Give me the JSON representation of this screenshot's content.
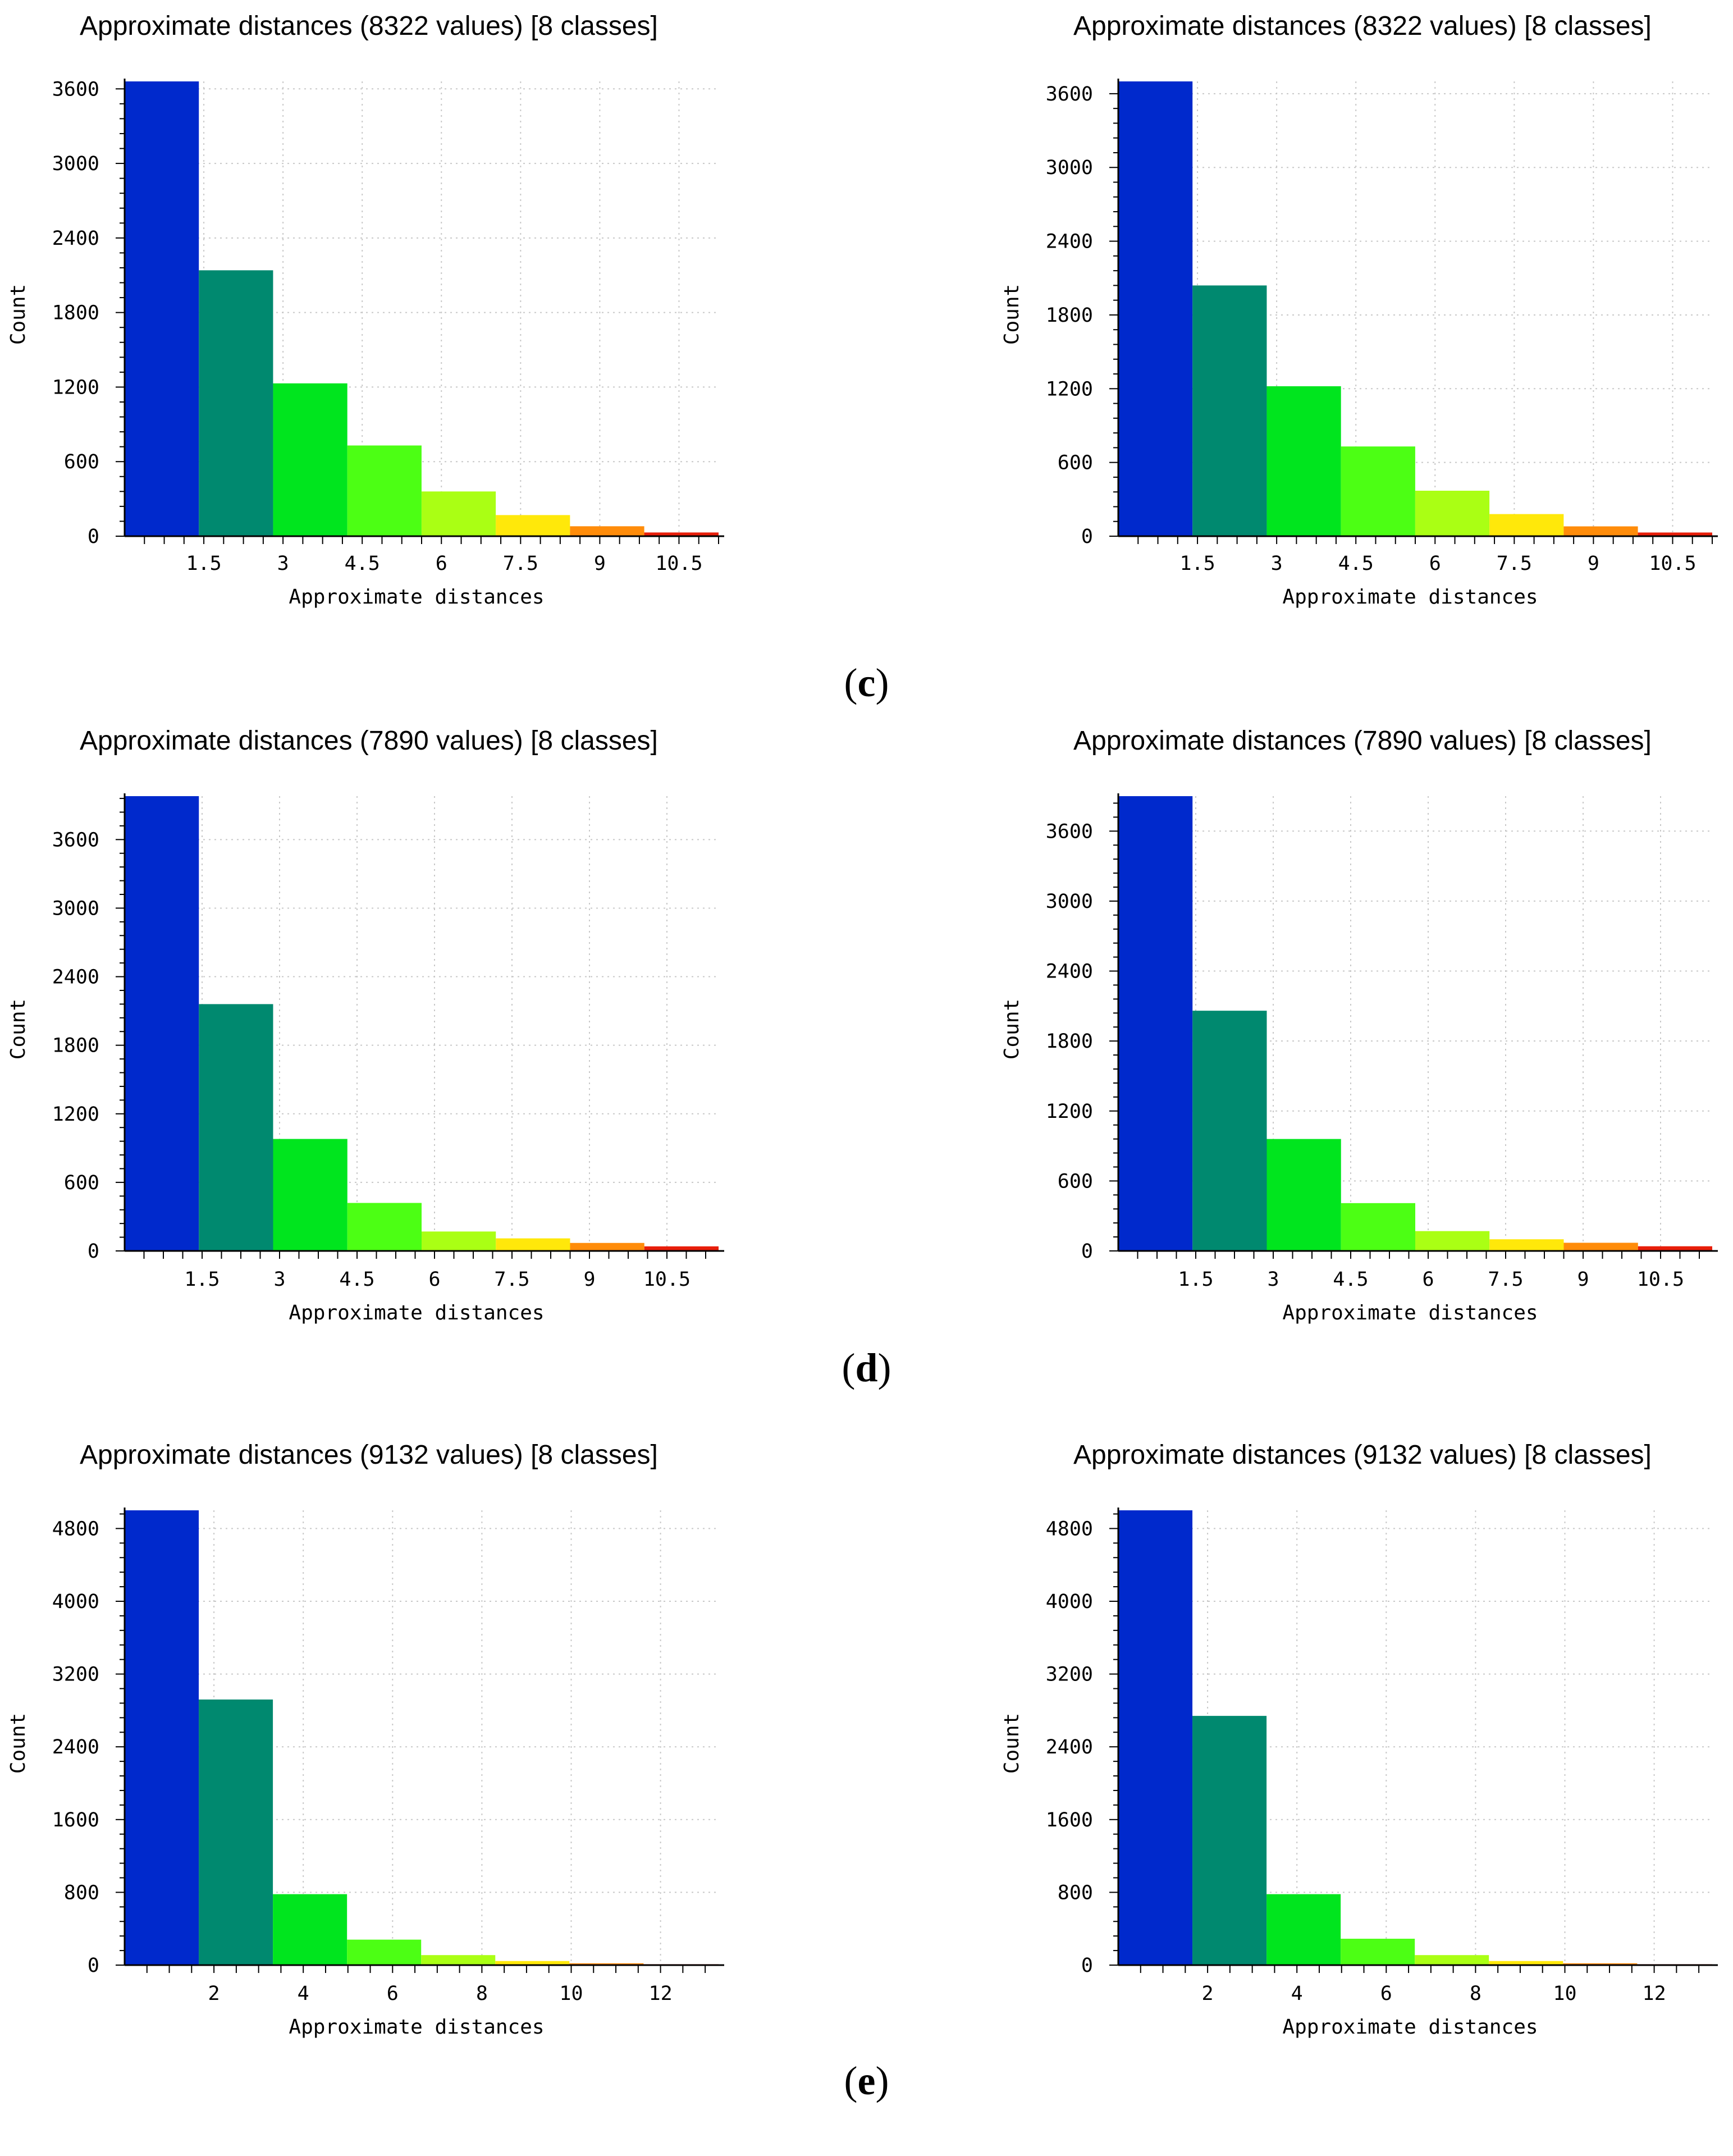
{
  "colors": [
    "#0029cc",
    "#00896f",
    "#00e51e",
    "#4cff14",
    "#aaff14",
    "#ffe80a",
    "#ff8c0a",
    "#e81e0a"
  ],
  "panels": [
    {
      "label": "c"
    },
    {
      "label": "d"
    },
    {
      "label": "e"
    }
  ],
  "chart_data": [
    {
      "type": "bar",
      "panel": "c",
      "side": "left",
      "title": "Approximate distances (8322 values) [8 classes]",
      "xlabel": "Approximate distances",
      "ylabel": "Count",
      "xlim": [
        0,
        11.25
      ],
      "ylim": [
        0,
        3660
      ],
      "yticks": [
        0,
        600,
        1200,
        1800,
        2400,
        3000,
        3600
      ],
      "xticks": [
        "1.5",
        "3",
        "4.5",
        "6",
        "7.5",
        "9",
        "10.5"
      ],
      "bin_edges": [
        0,
        1.406,
        2.812,
        4.218,
        5.624,
        7.03,
        8.436,
        9.842,
        11.25
      ],
      "values": [
        3660,
        2140,
        1230,
        730,
        360,
        170,
        80,
        30
      ]
    },
    {
      "type": "bar",
      "panel": "c",
      "side": "right",
      "title": "Approximate distances (8322 values) [8 classes]",
      "xlabel": "Approximate distances",
      "ylabel": "Count",
      "xlim": [
        0,
        11.25
      ],
      "ylim": [
        0,
        3700
      ],
      "yticks": [
        0,
        600,
        1200,
        1800,
        2400,
        3000,
        3600
      ],
      "xticks": [
        "1.5",
        "3",
        "4.5",
        "6",
        "7.5",
        "9",
        "10.5"
      ],
      "bin_edges": [
        0,
        1.406,
        2.812,
        4.218,
        5.624,
        7.03,
        8.436,
        9.842,
        11.25
      ],
      "values": [
        3700,
        2040,
        1220,
        730,
        370,
        180,
        80,
        30
      ]
    },
    {
      "type": "bar",
      "panel": "d",
      "side": "left",
      "title": "Approximate distances (7890 values) [8 classes]",
      "xlabel": "Approximate distances",
      "ylabel": "Count",
      "xlim": [
        0,
        11.5
      ],
      "ylim": [
        0,
        3980
      ],
      "yticks": [
        0,
        600,
        1200,
        1800,
        2400,
        3000,
        3600
      ],
      "xticks": [
        "1.5",
        "3",
        "4.5",
        "6",
        "7.5",
        "9",
        "10.5"
      ],
      "bin_edges": [
        0,
        1.4375,
        2.875,
        4.3125,
        5.75,
        7.1875,
        8.625,
        10.0625,
        11.5
      ],
      "values": [
        3980,
        2160,
        980,
        420,
        170,
        110,
        70,
        40
      ]
    },
    {
      "type": "bar",
      "panel": "d",
      "side": "right",
      "title": "Approximate distances (7890 values) [8 classes]",
      "xlabel": "Approximate distances",
      "ylabel": "Count",
      "xlim": [
        0,
        11.5
      ],
      "ylim": [
        0,
        3900
      ],
      "yticks": [
        0,
        600,
        1200,
        1800,
        2400,
        3000,
        3600
      ],
      "xticks": [
        "1.5",
        "3",
        "4.5",
        "6",
        "7.5",
        "9",
        "10.5"
      ],
      "bin_edges": [
        0,
        1.4375,
        2.875,
        4.3125,
        5.75,
        7.1875,
        8.625,
        10.0625,
        11.5
      ],
      "values": [
        3900,
        2060,
        960,
        410,
        170,
        100,
        70,
        40
      ]
    },
    {
      "type": "bar",
      "panel": "e",
      "side": "left",
      "title": "Approximate distances (9132 values) [8 classes]",
      "xlabel": "Approximate distances",
      "ylabel": "Count",
      "xlim": [
        0,
        13.3
      ],
      "ylim": [
        0,
        5000
      ],
      "yticks": [
        0,
        800,
        1600,
        2400,
        3200,
        4000,
        4800
      ],
      "xticks": [
        "2",
        "4",
        "6",
        "8",
        "10",
        "12"
      ],
      "bin_edges": [
        0,
        1.66,
        3.32,
        4.98,
        6.64,
        8.3,
        9.96,
        11.62,
        13.3
      ],
      "values": [
        5000,
        2920,
        780,
        280,
        110,
        45,
        20,
        10
      ]
    },
    {
      "type": "bar",
      "panel": "e",
      "side": "right",
      "title": "Approximate distances (9132 values) [8 classes]",
      "xlabel": "Approximate distances",
      "ylabel": "Count",
      "xlim": [
        0,
        13.3
      ],
      "ylim": [
        0,
        5000
      ],
      "yticks": [
        0,
        800,
        1600,
        2400,
        3200,
        4000,
        4800
      ],
      "xticks": [
        "2",
        "4",
        "6",
        "8",
        "10",
        "12"
      ],
      "bin_edges": [
        0,
        1.66,
        3.32,
        4.98,
        6.64,
        8.3,
        9.96,
        11.62,
        13.3
      ],
      "values": [
        5000,
        2740,
        780,
        290,
        110,
        45,
        20,
        10
      ]
    }
  ]
}
